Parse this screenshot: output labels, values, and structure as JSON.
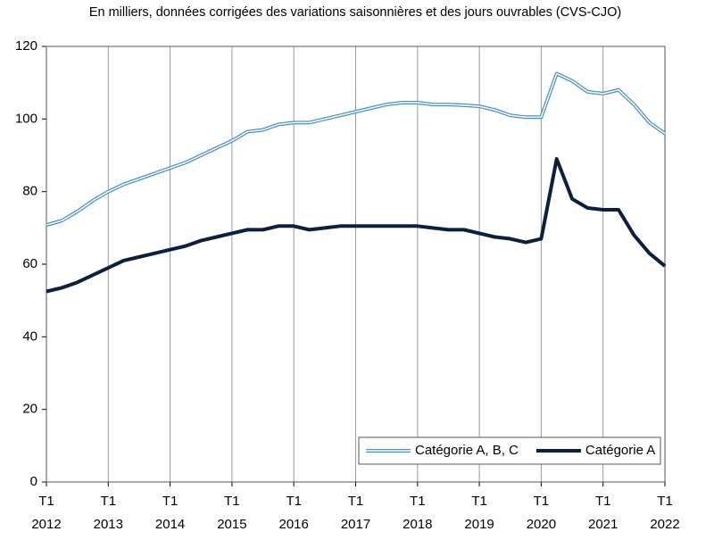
{
  "chart_data": {
    "type": "line",
    "title": "En milliers, données corrigées des variations saisonnières et des jours ouvrables (CVS-CJO)",
    "categories": [
      "T1 2012",
      null,
      null,
      null,
      "T1 2013",
      null,
      null,
      null,
      "T1 2014",
      null,
      null,
      null,
      "T1 2015",
      null,
      null,
      null,
      "T1 2016",
      null,
      null,
      null,
      "T1 2017",
      null,
      null,
      null,
      "T1 2018",
      null,
      null,
      null,
      "T1 2019",
      null,
      null,
      null,
      "T1 2020",
      null,
      null,
      null,
      "T1 2021",
      null,
      null,
      null,
      "T1 2022"
    ],
    "series": [
      {
        "name": "Catégorie A, B, C",
        "color": "#4a90c8",
        "line_style": "double",
        "values": [
          70.8,
          72,
          74.5,
          77.5,
          80,
          82,
          83.5,
          85,
          86.5,
          88,
          90,
          92,
          94,
          96.5,
          97,
          98.5,
          99,
          99,
          100,
          101,
          102,
          103,
          104,
          104.5,
          104.5,
          104,
          104,
          103.8,
          103.5,
          102.5,
          101,
          100.5,
          100.5,
          112.5,
          110.5,
          107.5,
          107,
          108,
          104,
          99,
          96
        ]
      },
      {
        "name": "Catégorie A",
        "color": "#0d1f3c",
        "line_style": "solid",
        "values": [
          52.5,
          53.5,
          55,
          57,
          59,
          61,
          62,
          63,
          64,
          65,
          66.5,
          67.5,
          68.5,
          69.5,
          69.5,
          70.5,
          70.5,
          69.5,
          70,
          70.5,
          70.5,
          70.5,
          70.5,
          70.5,
          70.5,
          70,
          69.5,
          69.5,
          68.5,
          67.5,
          67,
          66,
          67,
          89,
          78,
          75.5,
          75,
          75,
          68,
          63,
          59.5
        ]
      }
    ],
    "ylim": [
      0,
      120
    ],
    "yticks": [
      0,
      20,
      40,
      60,
      80,
      100,
      120
    ],
    "grid": "x",
    "legend": "lower-right"
  }
}
